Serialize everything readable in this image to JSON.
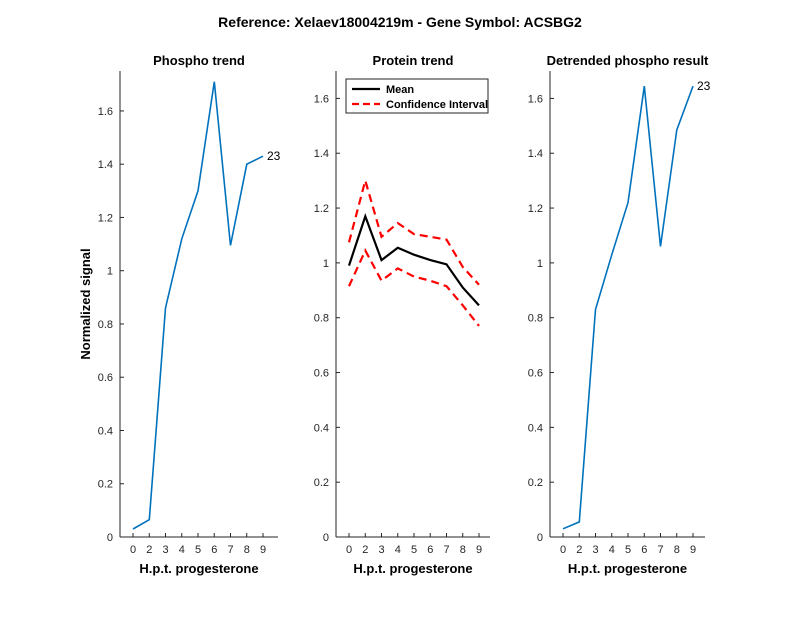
{
  "figure": {
    "title": "Reference:  Xelaev18004219m - Gene Symbol:  ACSBG2"
  },
  "colors": {
    "series_blue": "#0072BD",
    "mean_black": "#000000",
    "ci_red": "#FF0000",
    "axis": "#262626"
  },
  "chart_data": [
    {
      "type": "line",
      "title": "Phospho trend",
      "xlabel": "H.p.t. progesterone",
      "ylabel": "Normalized signal",
      "x_ticks": [
        "0",
        "2",
        "3",
        "4",
        "5",
        "6",
        "7",
        "8",
        "9"
      ],
      "y_ticks": [
        "0",
        "0.2",
        "0.4",
        "0.6",
        "0.8",
        "1",
        "1.2",
        "1.4",
        "1.6"
      ],
      "ylim": [
        0,
        1.75
      ],
      "series": [
        {
          "values": [
            0.03,
            0.065,
            0.86,
            1.12,
            1.3,
            1.71,
            1.095,
            1.4,
            1.43
          ]
        }
      ],
      "end_label": "23",
      "grid": false,
      "legend": "none"
    },
    {
      "type": "line",
      "title": "Protein trend",
      "xlabel": "H.p.t. progesterone",
      "ylabel": "",
      "x_ticks": [
        "0",
        "2",
        "3",
        "4",
        "5",
        "6",
        "7",
        "8",
        "9"
      ],
      "y_ticks": [
        "0",
        "0.2",
        "0.4",
        "0.6",
        "0.8",
        "1",
        "1.2",
        "1.4",
        "1.6"
      ],
      "ylim": [
        0,
        1.7
      ],
      "series": [
        {
          "name": "Mean",
          "values": [
            0.99,
            1.17,
            1.01,
            1.055,
            1.03,
            1.01,
            0.995,
            0.91,
            0.845
          ]
        },
        {
          "name": "Confidence Interval",
          "values": [
            1.075,
            1.3,
            1.095,
            1.145,
            1.105,
            1.095,
            1.085,
            0.985,
            0.92
          ]
        },
        {
          "values": [
            0.915,
            1.045,
            0.935,
            0.98,
            0.95,
            0.935,
            0.915,
            0.845,
            0.77
          ]
        }
      ],
      "grid": false,
      "legend": "top-left"
    },
    {
      "type": "line",
      "title": "Detrended phospho result",
      "xlabel": "H.p.t. progesterone",
      "ylabel": "",
      "x_ticks": [
        "0",
        "2",
        "3",
        "4",
        "5",
        "6",
        "7",
        "8",
        "9"
      ],
      "y_ticks": [
        "0",
        "0.2",
        "0.4",
        "0.6",
        "0.8",
        "1",
        "1.2",
        "1.4",
        "1.6"
      ],
      "ylim": [
        0,
        1.7
      ],
      "series": [
        {
          "values": [
            0.03,
            0.055,
            0.83,
            1.03,
            1.22,
            1.645,
            1.06,
            1.485,
            1.645
          ]
        }
      ],
      "end_label": "23",
      "grid": false,
      "legend": "none"
    }
  ]
}
